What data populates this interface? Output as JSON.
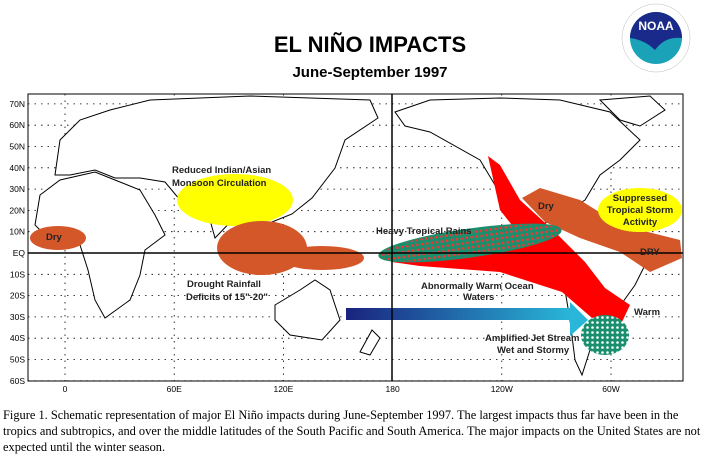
{
  "header": {
    "title": "EL NIÑO IMPACTS",
    "subtitle": "June-September 1997",
    "logo_text": "NOAA",
    "logo_ring_text": "NATIONAL OCEANIC AND ATMOSPHERIC ADMINISTRATION · U.S. DEPARTMENT OF COMMERCE"
  },
  "map": {
    "lat_labels": [
      "70N",
      "60N",
      "50N",
      "40N",
      "30N",
      "20N",
      "10N",
      "EQ",
      "10S",
      "20S",
      "30S",
      "40S",
      "50S",
      "60S"
    ],
    "lon_labels": [
      "0",
      "60E",
      "120E",
      "180",
      "120W",
      "60W"
    ],
    "annotations": {
      "africa_dry": "Dry",
      "monsoon_1": "Reduced Indian/Asian",
      "monsoon_2": "Monsoon Circulation",
      "drought_1": "Drought   Rainfall",
      "drought_2": "Deficits of 15\"-20\"",
      "heavy_rains": "Heavy Tropical Rains",
      "warm_waters_1": "Abnormally Warm Ocean",
      "warm_waters_2": "Waters",
      "jet_1": "Amplified Jet Stream",
      "jet_2": "Wet and Stormy",
      "warm": "Warm",
      "ca_dry": "Dry",
      "sa_dry": "DRY",
      "storm_1": "Suppressed",
      "storm_2": "Tropical Storm",
      "storm_3": "Activity"
    },
    "colors": {
      "dry": "#d4572a",
      "monsoon": "#ffff00",
      "warm_ocean": "#ff0000",
      "wet": "#1a8f6e",
      "jet_start": "#1a237e",
      "jet_end": "#29b6d8"
    }
  },
  "caption": "Figure 1. Schematic representation of major El Niño impacts during June-September 1997. The largest impacts thus far have been in the tropics and subtropics, and over the middle latitudes of the South Pacific and South America. The major impacts on the United States are not expected until the winter season."
}
